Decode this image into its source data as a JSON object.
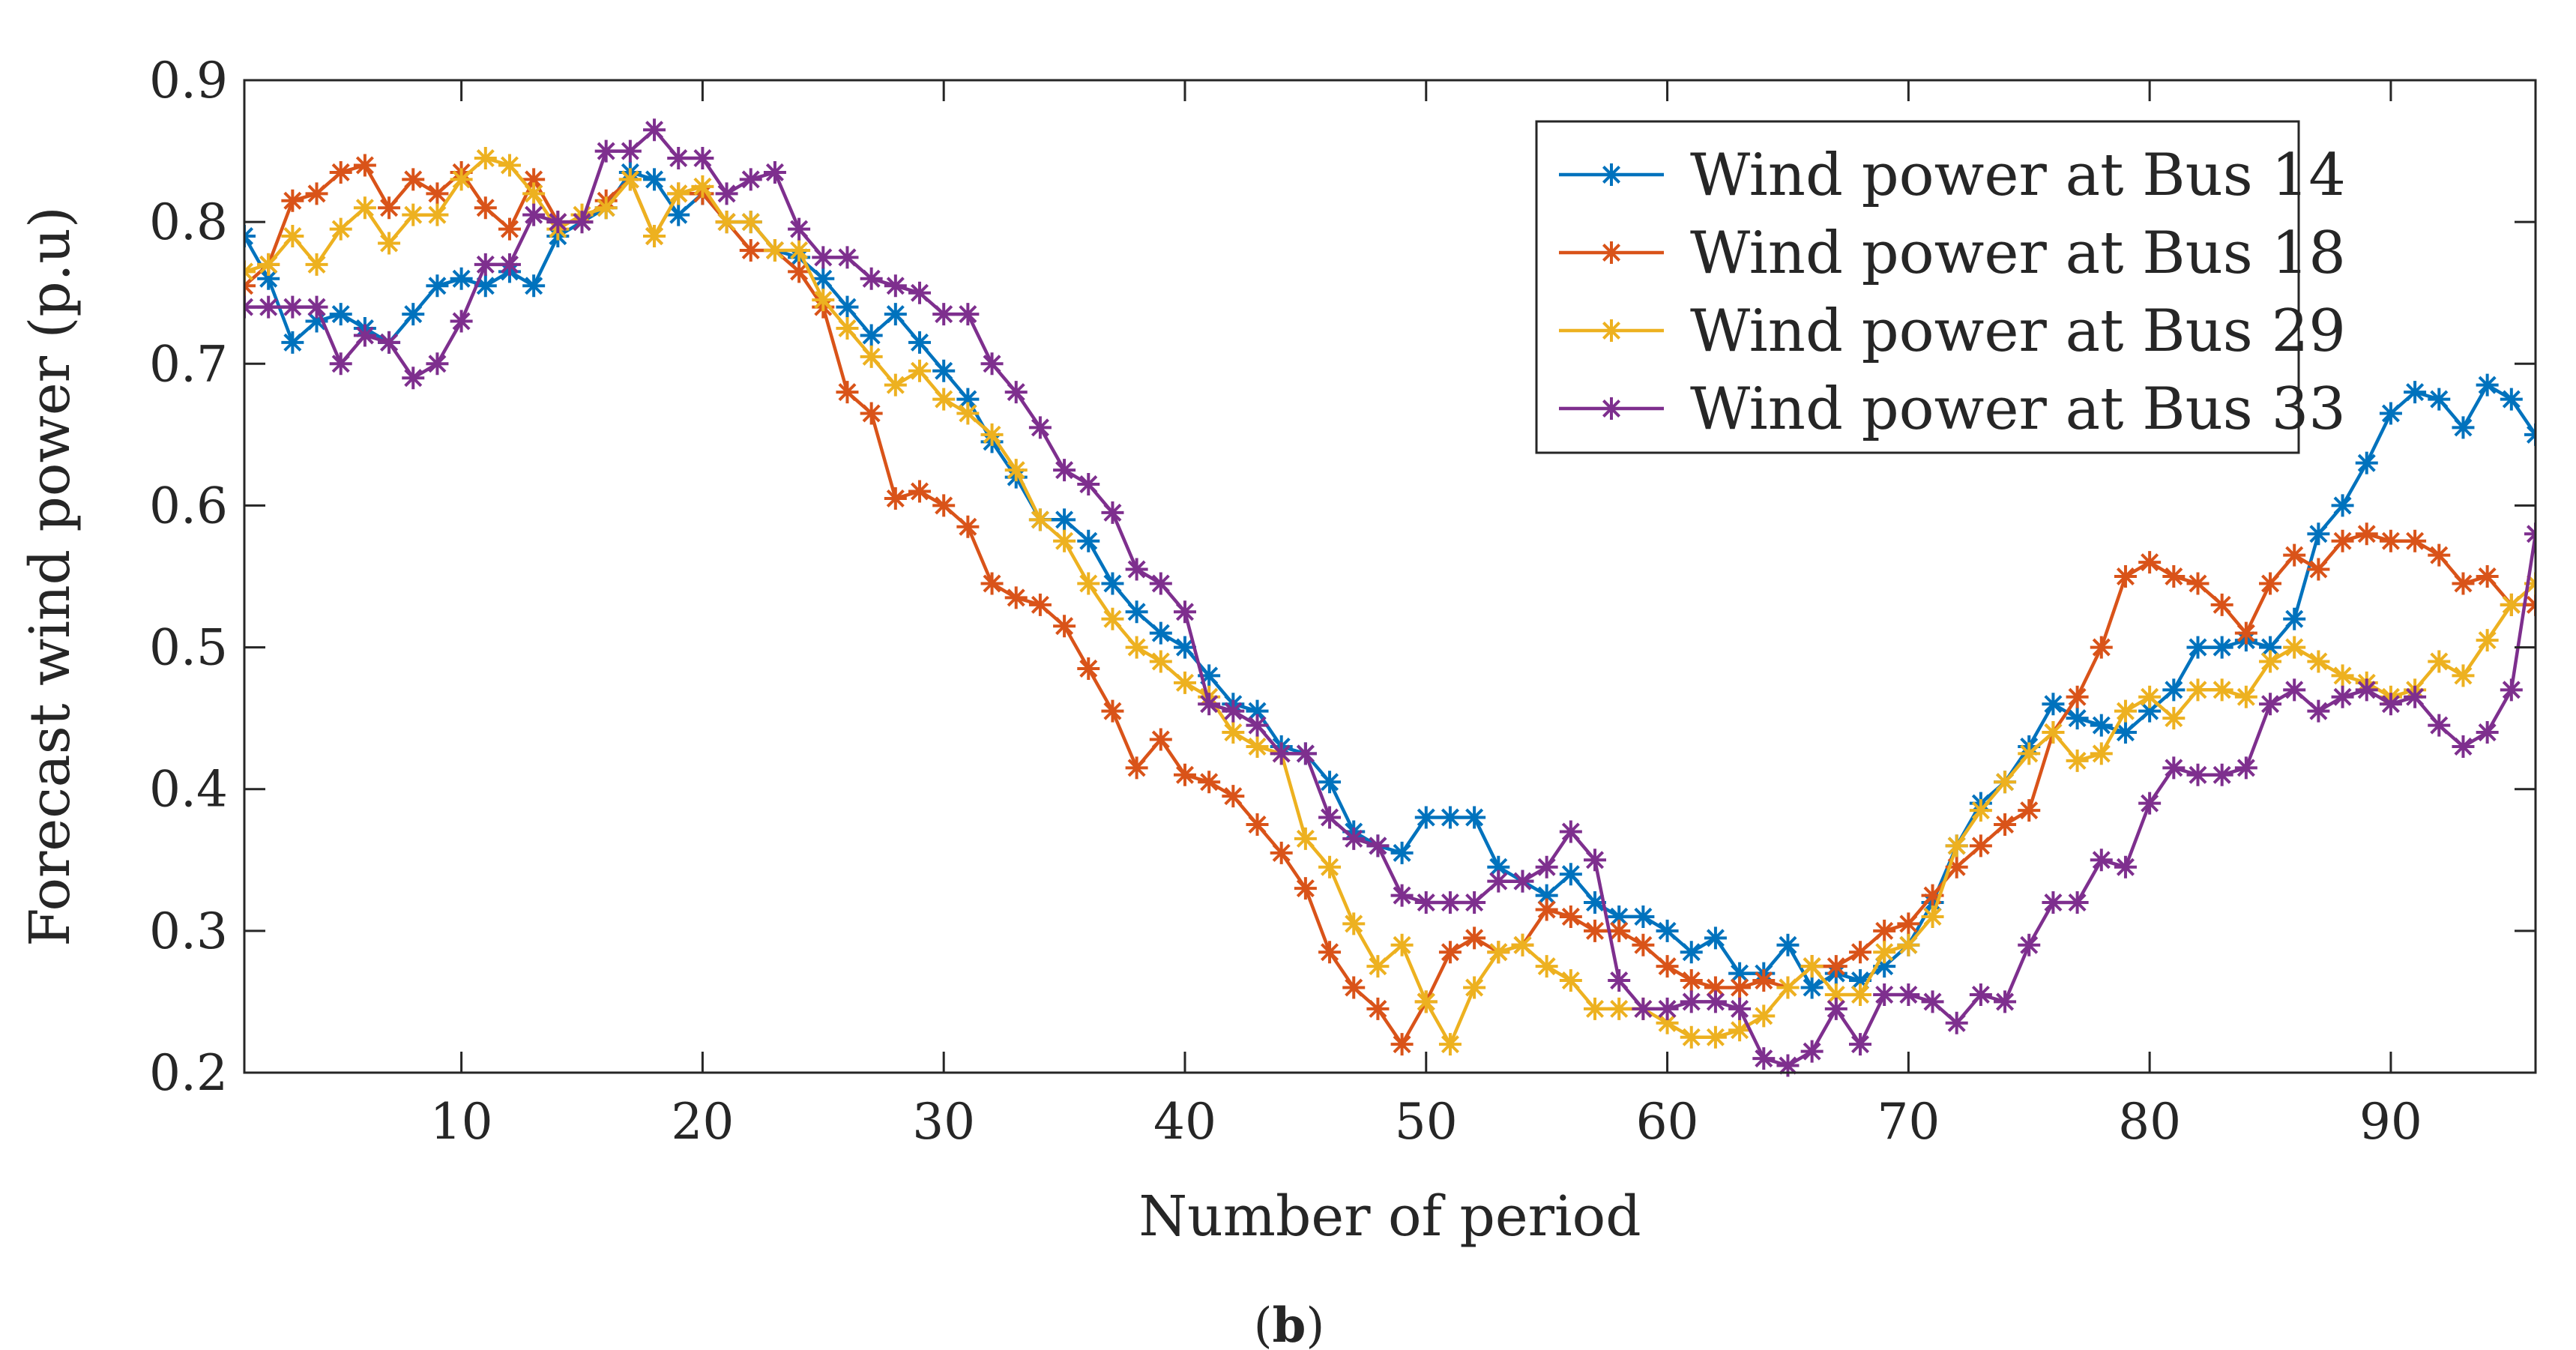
{
  "chart_data": {
    "type": "line",
    "title": "",
    "xlabel": "Number of period",
    "ylabel": "Forecast wind power (p.u)",
    "xlim": [
      1,
      96
    ],
    "ylim": [
      0.2,
      0.9
    ],
    "xticks": [
      10,
      20,
      30,
      40,
      50,
      60,
      70,
      80,
      90
    ],
    "yticks": [
      0.2,
      0.3,
      0.4,
      0.5,
      0.6,
      0.7,
      0.8,
      0.9
    ],
    "xtick_labels": [
      "10",
      "20",
      "30",
      "40",
      "50",
      "60",
      "70",
      "80",
      "90"
    ],
    "ytick_labels": [
      "0.2",
      "0.3",
      "0.4",
      "0.5",
      "0.6",
      "0.7",
      "0.8",
      "0.9"
    ],
    "grid": false,
    "legend_position": "top-right",
    "marker": "asterisk",
    "caption_label": "b",
    "x": [
      1,
      2,
      3,
      4,
      5,
      6,
      7,
      8,
      9,
      10,
      11,
      12,
      13,
      14,
      15,
      16,
      17,
      18,
      19,
      20,
      21,
      22,
      23,
      24,
      25,
      26,
      27,
      28,
      29,
      30,
      31,
      32,
      33,
      34,
      35,
      36,
      37,
      38,
      39,
      40,
      41,
      42,
      43,
      44,
      45,
      46,
      47,
      48,
      49,
      50,
      51,
      52,
      53,
      54,
      55,
      56,
      57,
      58,
      59,
      60,
      61,
      62,
      63,
      64,
      65,
      66,
      67,
      68,
      69,
      70,
      71,
      72,
      73,
      74,
      75,
      76,
      77,
      78,
      79,
      80,
      81,
      82,
      83,
      84,
      85,
      86,
      87,
      88,
      89,
      90,
      91,
      92,
      93,
      94,
      95,
      96
    ],
    "series": [
      {
        "name": "Wind power at Bus 14",
        "color": "#0072bd",
        "values": [
          0.79,
          0.76,
          0.715,
          0.73,
          0.735,
          0.725,
          0.715,
          0.735,
          0.755,
          0.76,
          0.755,
          0.765,
          0.755,
          0.79,
          0.8,
          0.81,
          0.835,
          0.83,
          0.805,
          0.82,
          0.8,
          0.8,
          0.78,
          0.775,
          0.76,
          0.74,
          0.72,
          0.735,
          0.715,
          0.695,
          0.675,
          0.645,
          0.62,
          0.59,
          0.59,
          0.575,
          0.545,
          0.525,
          0.51,
          0.5,
          0.48,
          0.46,
          0.455,
          0.43,
          0.425,
          0.405,
          0.37,
          0.36,
          0.355,
          0.38,
          0.38,
          0.38,
          0.345,
          0.335,
          0.325,
          0.34,
          0.32,
          0.31,
          0.31,
          0.3,
          0.285,
          0.295,
          0.27,
          0.27,
          0.29,
          0.26,
          0.27,
          0.265,
          0.275,
          0.29,
          0.32,
          0.36,
          0.39,
          0.405,
          0.43,
          0.46,
          0.45,
          0.445,
          0.44,
          0.455,
          0.47,
          0.5,
          0.5,
          0.505,
          0.5,
          0.52,
          0.58,
          0.6,
          0.63,
          0.665,
          0.68,
          0.675,
          0.655,
          0.685,
          0.675,
          0.65
        ]
      },
      {
        "name": "Wind power at Bus 18",
        "color": "#d95319",
        "values": [
          0.755,
          0.77,
          0.815,
          0.82,
          0.835,
          0.84,
          0.81,
          0.83,
          0.82,
          0.835,
          0.81,
          0.795,
          0.83,
          0.8,
          0.8,
          0.815,
          0.83,
          0.79,
          0.82,
          0.82,
          0.8,
          0.78,
          0.78,
          0.765,
          0.74,
          0.68,
          0.665,
          0.605,
          0.61,
          0.6,
          0.585,
          0.545,
          0.535,
          0.53,
          0.515,
          0.485,
          0.455,
          0.415,
          0.435,
          0.41,
          0.405,
          0.395,
          0.375,
          0.355,
          0.33,
          0.285,
          0.26,
          0.245,
          0.22,
          0.25,
          0.285,
          0.295,
          0.285,
          0.29,
          0.315,
          0.31,
          0.3,
          0.3,
          0.29,
          0.275,
          0.265,
          0.26,
          0.26,
          0.265,
          0.26,
          0.275,
          0.275,
          0.285,
          0.3,
          0.305,
          0.325,
          0.345,
          0.36,
          0.375,
          0.385,
          0.44,
          0.465,
          0.5,
          0.55,
          0.56,
          0.55,
          0.545,
          0.53,
          0.51,
          0.545,
          0.565,
          0.555,
          0.575,
          0.58,
          0.575,
          0.575,
          0.565,
          0.545,
          0.55,
          0.53,
          0.53
        ]
      },
      {
        "name": "Wind power at Bus 29",
        "color": "#edb120",
        "values": [
          0.765,
          0.77,
          0.79,
          0.77,
          0.795,
          0.81,
          0.785,
          0.805,
          0.805,
          0.83,
          0.845,
          0.84,
          0.82,
          0.795,
          0.805,
          0.81,
          0.83,
          0.79,
          0.82,
          0.825,
          0.8,
          0.8,
          0.78,
          0.78,
          0.745,
          0.725,
          0.705,
          0.685,
          0.695,
          0.675,
          0.665,
          0.65,
          0.625,
          0.59,
          0.575,
          0.545,
          0.52,
          0.5,
          0.49,
          0.475,
          0.465,
          0.44,
          0.43,
          0.425,
          0.365,
          0.345,
          0.305,
          0.275,
          0.29,
          0.25,
          0.22,
          0.26,
          0.285,
          0.29,
          0.275,
          0.265,
          0.245,
          0.245,
          0.245,
          0.235,
          0.225,
          0.225,
          0.23,
          0.24,
          0.26,
          0.275,
          0.255,
          0.255,
          0.285,
          0.29,
          0.31,
          0.36,
          0.385,
          0.405,
          0.425,
          0.44,
          0.42,
          0.425,
          0.455,
          0.465,
          0.45,
          0.47,
          0.47,
          0.465,
          0.49,
          0.5,
          0.49,
          0.48,
          0.475,
          0.465,
          0.47,
          0.49,
          0.48,
          0.505,
          0.53,
          0.545
        ]
      },
      {
        "name": "Wind power at Bus 33",
        "color": "#7e2f8e",
        "values": [
          0.74,
          0.74,
          0.74,
          0.74,
          0.7,
          0.72,
          0.715,
          0.69,
          0.7,
          0.73,
          0.77,
          0.77,
          0.805,
          0.8,
          0.8,
          0.85,
          0.85,
          0.865,
          0.845,
          0.845,
          0.82,
          0.83,
          0.835,
          0.795,
          0.775,
          0.775,
          0.76,
          0.755,
          0.75,
          0.735,
          0.735,
          0.7,
          0.68,
          0.655,
          0.625,
          0.615,
          0.595,
          0.555,
          0.545,
          0.525,
          0.46,
          0.455,
          0.445,
          0.425,
          0.425,
          0.38,
          0.365,
          0.36,
          0.325,
          0.32,
          0.32,
          0.32,
          0.335,
          0.335,
          0.345,
          0.37,
          0.35,
          0.265,
          0.245,
          0.245,
          0.25,
          0.25,
          0.245,
          0.21,
          0.205,
          0.215,
          0.245,
          0.22,
          0.255,
          0.255,
          0.25,
          0.235,
          0.255,
          0.25,
          0.29,
          0.32,
          0.32,
          0.35,
          0.345,
          0.39,
          0.415,
          0.41,
          0.41,
          0.415,
          0.46,
          0.47,
          0.455,
          0.465,
          0.47,
          0.46,
          0.465,
          0.445,
          0.43,
          0.44,
          0.47,
          0.58
        ]
      }
    ]
  }
}
